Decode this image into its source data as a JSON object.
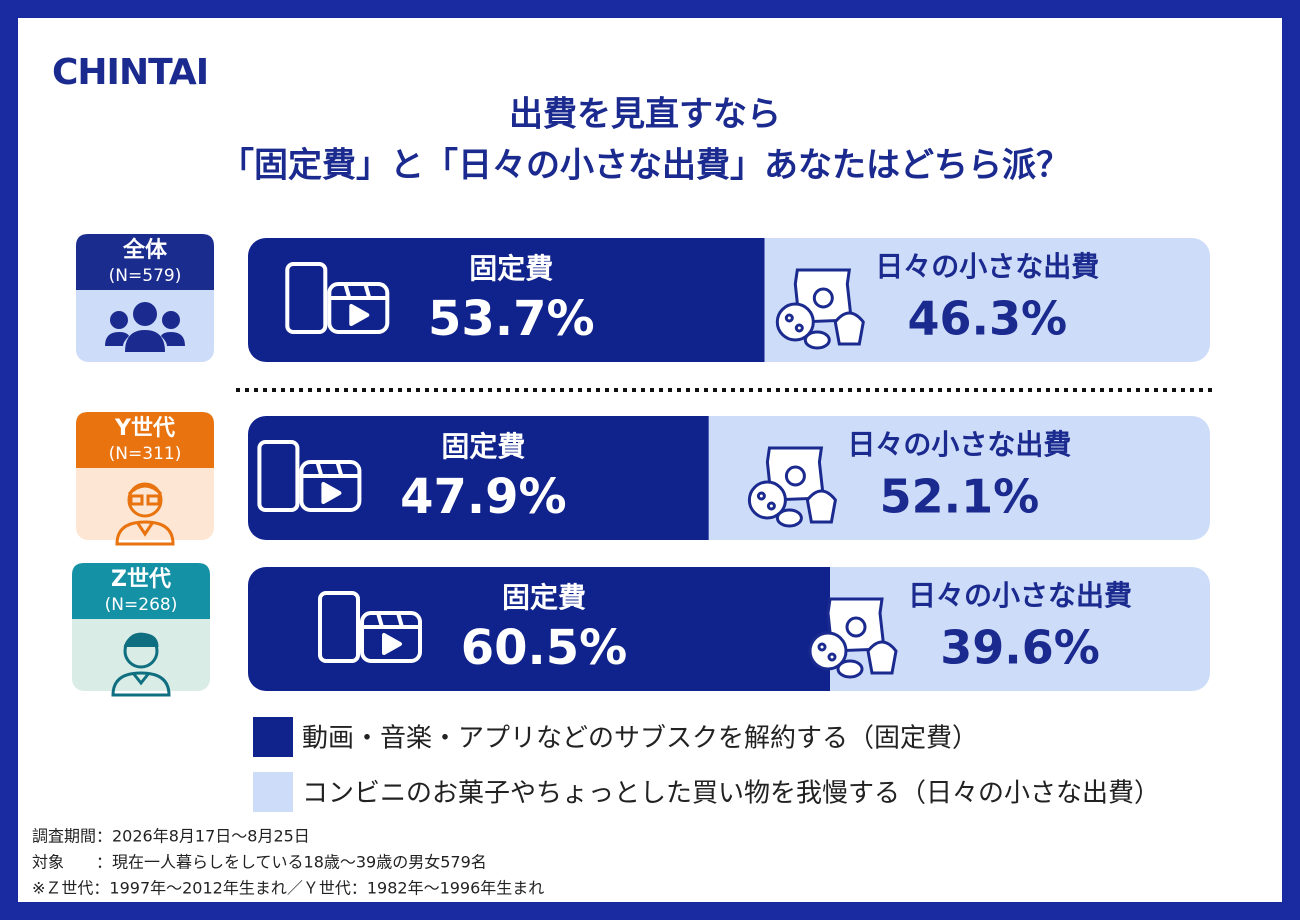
{
  "logo": "CHINTAI",
  "chart_data": {
    "type": "bar",
    "orientation": "horizontal",
    "stacked": true,
    "title": [
      "出費を見直すなら",
      "「固定費」と「日々の小さな出費」あなたはどちら派？"
    ],
    "categories": [
      "全体",
      "Y世代",
      "Z世代"
    ],
    "sample_labels": [
      "(N=579)",
      "(N=311)",
      "(N=268)"
    ],
    "category_colors": [
      "#1b2c8f",
      "#e8730f",
      "#1591a6"
    ],
    "category_fills": [
      "#cddcf8",
      "#fde6d3",
      "#d9ede6"
    ],
    "xlim": [
      0,
      100
    ],
    "series": [
      {
        "name": "固定費",
        "color": "#10238c",
        "values": [
          53.7,
          47.9,
          60.5
        ],
        "value_labels": [
          "53.7%",
          "47.9%",
          "60.5%"
        ],
        "legend": "動画・音楽・アプリなどのサブスクを解約する（固定費）"
      },
      {
        "name": "日々の小さな出費",
        "color": "#cddcf8",
        "values": [
          46.3,
          52.1,
          39.6
        ],
        "value_labels": [
          "46.3%",
          "52.1%",
          "39.6%"
        ],
        "legend": "コンビニのお菓子やちょっとした買い物を我慢する（日々の小さな出費）"
      }
    ]
  },
  "notes": [
    "調査期間：2026年8月17日～8月25日",
    "対象　　：現在一人暮らしをしている18歳～39歳の男女579名",
    "※Ｚ世代：1997年～2012年生まれ／Ｙ世代：1982年～1996年生まれ"
  ]
}
